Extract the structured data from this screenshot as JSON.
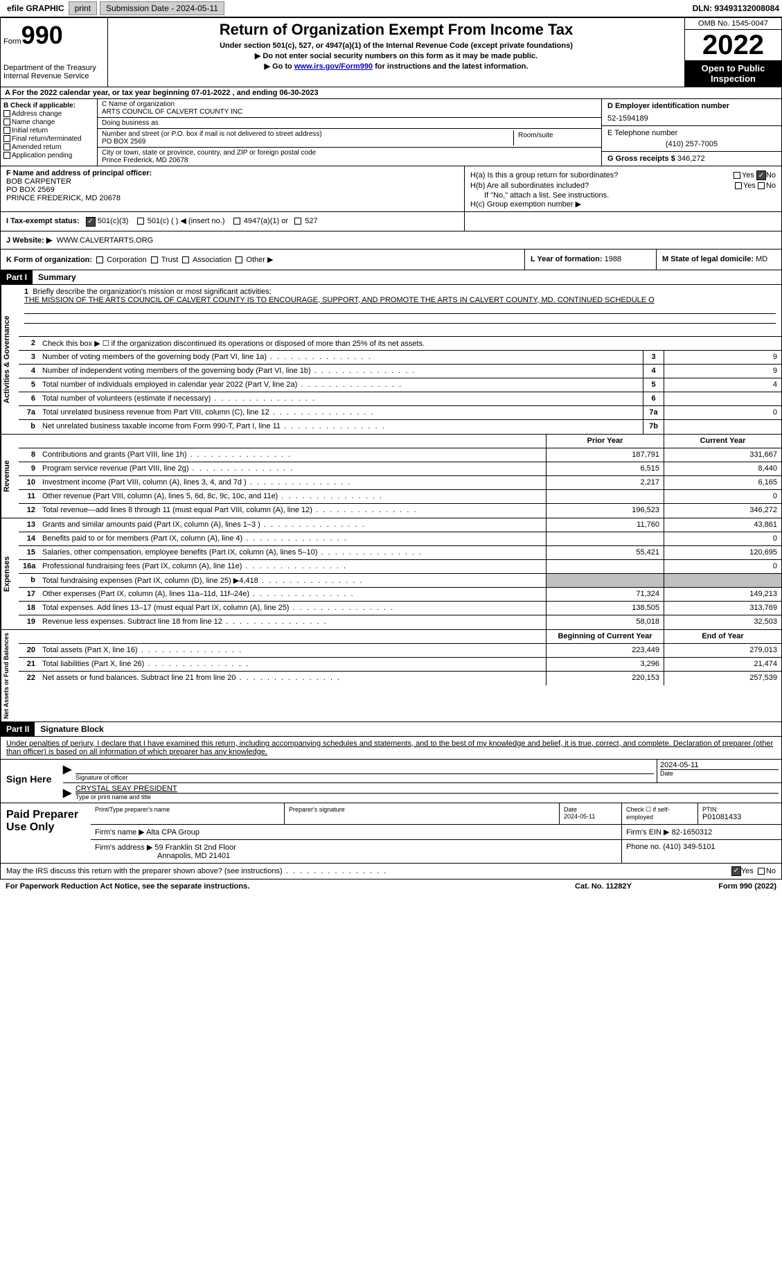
{
  "topbar": {
    "efile": "efile GRAPHIC",
    "print": "print",
    "submission_label": "Submission Date - 2024-05-11",
    "dln_label": "DLN: 93493132008084"
  },
  "header": {
    "form_word": "Form",
    "form_num": "990",
    "dept": "Department of the Treasury Internal Revenue Service",
    "title": "Return of Organization Exempt From Income Tax",
    "subtitle": "Under section 501(c), 527, or 4947(a)(1) of the Internal Revenue Code (except private foundations)",
    "instr1": "▶ Do not enter social security numbers on this form as it may be made public.",
    "instr2_pre": "▶ Go to ",
    "instr2_link": "www.irs.gov/Form990",
    "instr2_post": " for instructions and the latest information.",
    "omb": "OMB No. 1545-0047",
    "year": "2022",
    "open": "Open to Public Inspection"
  },
  "row_a": "A For the 2022 calendar year, or tax year beginning 07-01-2022    , and ending 06-30-2023",
  "b": {
    "header": "B Check if applicable:",
    "opts": [
      "Address change",
      "Name change",
      "Initial return",
      "Final return/terminated",
      "Amended return",
      "Application pending"
    ]
  },
  "c": {
    "name_label": "C Name of organization",
    "name": "ARTS COUNCIL OF CALVERT COUNTY INC",
    "dba_label": "Doing business as",
    "dba": "",
    "street_label": "Number and street (or P.O. box if mail is not delivered to street address)",
    "room_label": "Room/suite",
    "street": "PO BOX 2569",
    "city_label": "City or town, state or province, country, and ZIP or foreign postal code",
    "city": "Prince Frederick, MD  20678"
  },
  "d": {
    "ein_label": "D Employer identification number",
    "ein": "52-1594189",
    "phone_label": "E Telephone number",
    "phone": "(410) 257-7005",
    "gross_label": "G Gross receipts $",
    "gross": "346,272"
  },
  "f": {
    "label": "F  Name and address of principal officer:",
    "name": "BOB CARPENTER",
    "street": "PO BOX 2569",
    "city": "PRINCE FREDERICK, MD  20678"
  },
  "h": {
    "a_label": "H(a)  Is this a group return for subordinates?",
    "b_label": "H(b)  Are all subordinates included?",
    "b_note": "If \"No,\" attach a list. See instructions.",
    "c_label": "H(c)  Group exemption number ▶",
    "yes": "Yes",
    "no": "No"
  },
  "i": {
    "label": "I  Tax-exempt status:",
    "o1": "501(c)(3)",
    "o2": "501(c) (   ) ◀ (insert no.)",
    "o3": "4947(a)(1) or",
    "o4": "527"
  },
  "j": {
    "label": "J  Website: ▶",
    "value": "WWW.CALVERTARTS.ORG"
  },
  "k": {
    "label": "K Form of organization:",
    "o1": "Corporation",
    "o2": "Trust",
    "o3": "Association",
    "o4": "Other ▶",
    "l_label": "L Year of formation:",
    "l_val": "1988",
    "m_label": "M State of legal domicile:",
    "m_val": "MD"
  },
  "part1": {
    "header": "Part I",
    "title": "Summary"
  },
  "mission": {
    "num": "1",
    "label": "Briefly describe the organization's mission or most significant activities:",
    "text": "THE MISSION OF THE ARTS COUNCIL OF CALVERT COUNTY IS TO ENCOURAGE, SUPPORT, AND PROMOTE THE ARTS IN CALVERT COUNTY, MD. CONTINUED SCHEDULE O"
  },
  "lines_gov": [
    {
      "n": "2",
      "t": "Check this box ▶ ☐  if the organization discontinued its operations or disposed of more than 25% of its net assets."
    },
    {
      "n": "3",
      "t": "Number of voting members of the governing body (Part VI, line 1a)",
      "box": "3",
      "v": "9"
    },
    {
      "n": "4",
      "t": "Number of independent voting members of the governing body (Part VI, line 1b)",
      "box": "4",
      "v": "9"
    },
    {
      "n": "5",
      "t": "Total number of individuals employed in calendar year 2022 (Part V, line 2a)",
      "box": "5",
      "v": "4"
    },
    {
      "n": "6",
      "t": "Total number of volunteers (estimate if necessary)",
      "box": "6",
      "v": ""
    },
    {
      "n": "7a",
      "t": "Total unrelated business revenue from Part VIII, column (C), line 12",
      "box": "7a",
      "v": "0"
    },
    {
      "n": "b",
      "t": "Net unrelated business taxable income from Form 990-T, Part I, line 11",
      "box": "7b",
      "v": ""
    }
  ],
  "col_headers": {
    "prior": "Prior Year",
    "current": "Current Year",
    "boy": "Beginning of Current Year",
    "eoy": "End of Year"
  },
  "lines_rev": [
    {
      "n": "8",
      "t": "Contributions and grants (Part VIII, line 1h)",
      "p": "187,791",
      "c": "331,667"
    },
    {
      "n": "9",
      "t": "Program service revenue (Part VIII, line 2g)",
      "p": "6,515",
      "c": "8,440"
    },
    {
      "n": "10",
      "t": "Investment income (Part VIII, column (A), lines 3, 4, and 7d )",
      "p": "2,217",
      "c": "6,165"
    },
    {
      "n": "11",
      "t": "Other revenue (Part VIII, column (A), lines 5, 6d, 8c, 9c, 10c, and 11e)",
      "p": "",
      "c": "0"
    },
    {
      "n": "12",
      "t": "Total revenue—add lines 8 through 11 (must equal Part VIII, column (A), line 12)",
      "p": "196,523",
      "c": "346,272"
    }
  ],
  "lines_exp": [
    {
      "n": "13",
      "t": "Grants and similar amounts paid (Part IX, column (A), lines 1–3 )",
      "p": "11,760",
      "c": "43,861"
    },
    {
      "n": "14",
      "t": "Benefits paid to or for members (Part IX, column (A), line 4)",
      "p": "",
      "c": "0"
    },
    {
      "n": "15",
      "t": "Salaries, other compensation, employee benefits (Part IX, column (A), lines 5–10)",
      "p": "55,421",
      "c": "120,695"
    },
    {
      "n": "16a",
      "t": "Professional fundraising fees (Part IX, column (A), line 11e)",
      "p": "",
      "c": "0"
    },
    {
      "n": "b",
      "t": "Total fundraising expenses (Part IX, column (D), line 25) ▶4,418",
      "shade": true
    },
    {
      "n": "17",
      "t": "Other expenses (Part IX, column (A), lines 11a–11d, 11f–24e)",
      "p": "71,324",
      "c": "149,213"
    },
    {
      "n": "18",
      "t": "Total expenses. Add lines 13–17 (must equal Part IX, column (A), line 25)",
      "p": "138,505",
      "c": "313,769"
    },
    {
      "n": "19",
      "t": "Revenue less expenses. Subtract line 18 from line 12",
      "p": "58,018",
      "c": "32,503"
    }
  ],
  "lines_net": [
    {
      "n": "20",
      "t": "Total assets (Part X, line 16)",
      "p": "223,449",
      "c": "279,013"
    },
    {
      "n": "21",
      "t": "Total liabilities (Part X, line 26)",
      "p": "3,296",
      "c": "21,474"
    },
    {
      "n": "22",
      "t": "Net assets or fund balances. Subtract line 21 from line 20",
      "p": "220,153",
      "c": "257,539"
    }
  ],
  "vtabs": {
    "gov": "Activities & Governance",
    "rev": "Revenue",
    "exp": "Expenses",
    "net": "Net Assets or Fund Balances"
  },
  "part2": {
    "header": "Part II",
    "title": "Signature Block"
  },
  "sig": {
    "penalty": "Under penalties of perjury, I declare that I have examined this return, including accompanying schedules and statements, and to the best of my knowledge and belief, it is true, correct, and complete. Declaration of preparer (other than officer) is based on all information of which preparer has any knowledge.",
    "sign_here": "Sign Here",
    "sig_officer": "Signature of officer",
    "date": "Date",
    "date_val": "2024-05-11",
    "name_title": "CRYSTAL SEAY PRESIDENT",
    "type_name": "Type or print name and title"
  },
  "prep": {
    "label": "Paid Preparer Use Only",
    "print_name": "Print/Type preparer's name",
    "prep_sig": "Preparer's signature",
    "date_label": "Date",
    "date_val": "2024-05-11",
    "check_label": "Check ☐ if self-employed",
    "ptin_label": "PTIN",
    "ptin": "P01081433",
    "firm_name_label": "Firm's name    ▶",
    "firm_name": "Alta CPA Group",
    "firm_ein_label": "Firm's EIN ▶",
    "firm_ein": "82-1650312",
    "firm_addr_label": "Firm's address ▶",
    "firm_addr1": "59 Franklin St 2nd Floor",
    "firm_addr2": "Annapolis, MD  21401",
    "phone_label": "Phone no.",
    "phone": "(410) 349-5101"
  },
  "footer": {
    "discuss": "May the IRS discuss this return with the preparer shown above? (see instructions)",
    "yes": "Yes",
    "no": "No",
    "paperwork": "For Paperwork Reduction Act Notice, see the separate instructions.",
    "cat": "Cat. No. 11282Y",
    "form": "Form 990 (2022)"
  }
}
